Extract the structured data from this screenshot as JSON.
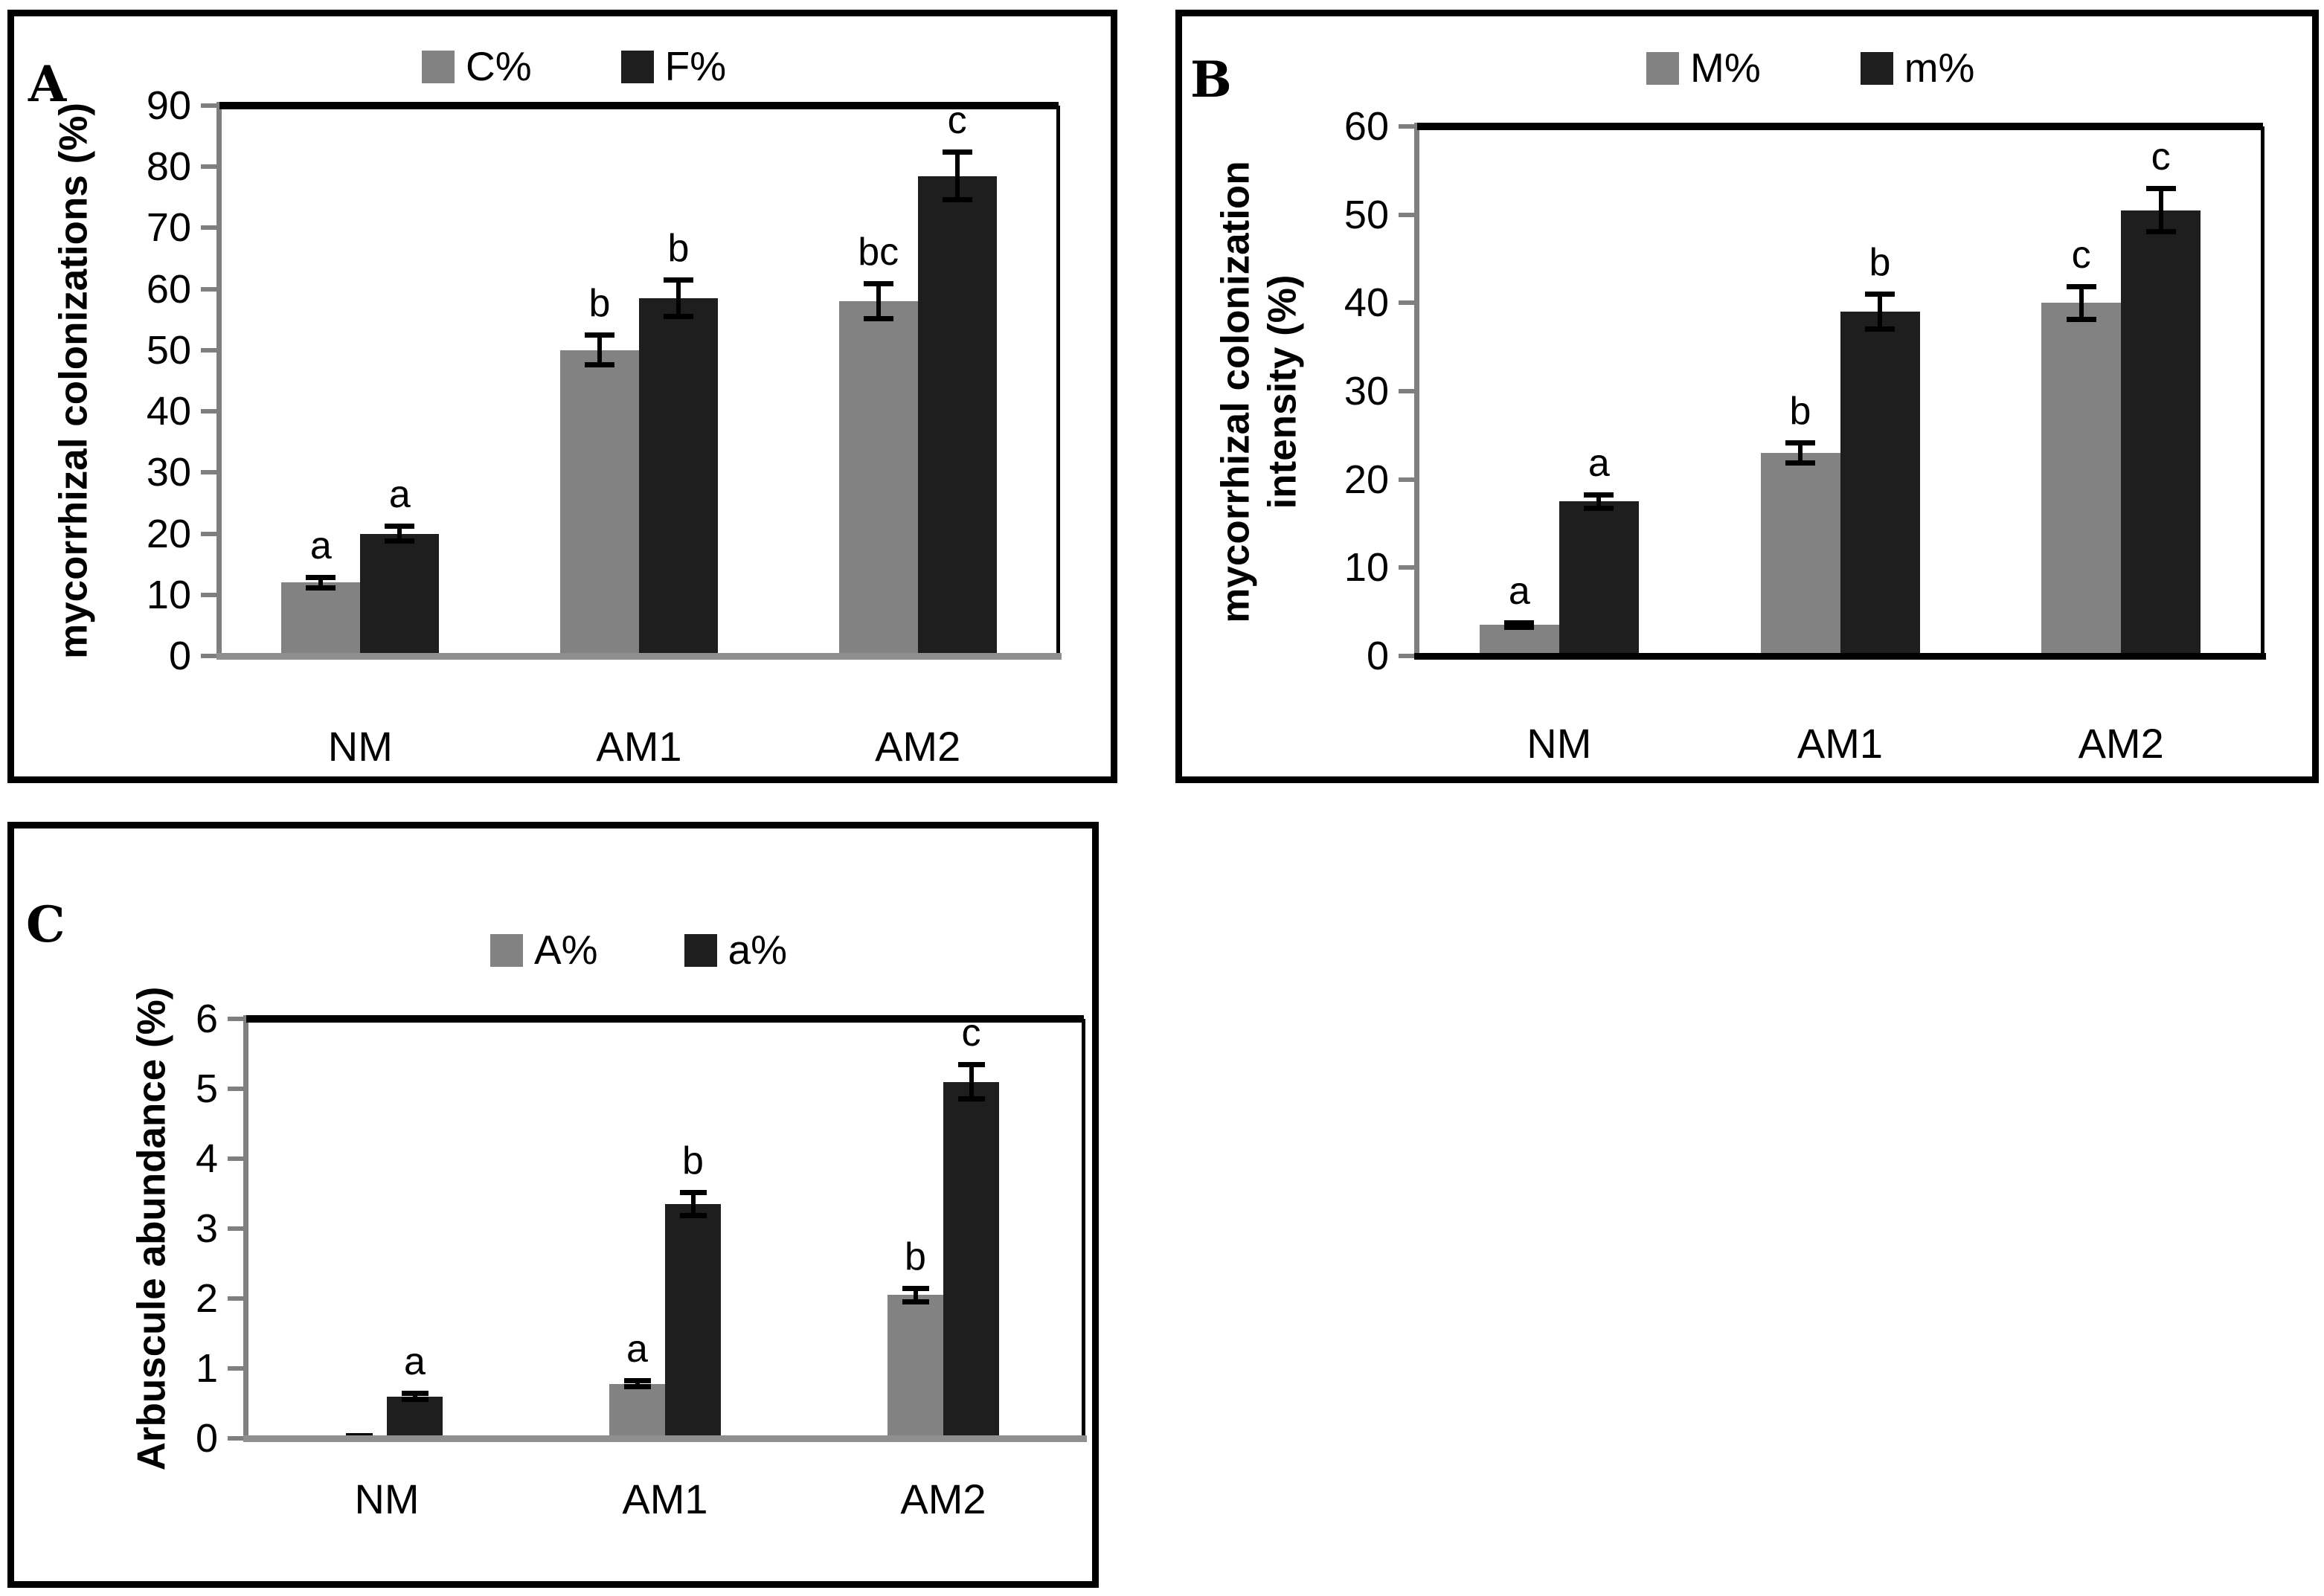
{
  "page": {
    "background": "#ffffff"
  },
  "colors": {
    "series_gray": "#828282",
    "series_dark": "#1e1e1e",
    "axis_gray": "#7f7f7f",
    "error_black": "#000000",
    "text": "#000000",
    "panel_border": "#000000"
  },
  "chart_data": [
    {
      "panel_label": "A",
      "type": "bar",
      "title": "",
      "ylabel_lines": [
        "mycorrhizal colonizations (%)"
      ],
      "xlabel": "",
      "categories": [
        "NM",
        "AM1",
        "AM2"
      ],
      "ylim": [
        0,
        90
      ],
      "ytick_step": 10,
      "grid": false,
      "legend_position": "top-center",
      "baseline_color": "#8f8f8f",
      "series": [
        {
          "name": "C%",
          "color": "#828282",
          "values": [
            12,
            50,
            58
          ],
          "errors": [
            0.9,
            2.5,
            2.9
          ],
          "sig_letters": [
            "a",
            "b",
            "bc"
          ]
        },
        {
          "name": "F%",
          "color": "#1e1e1e",
          "values": [
            20,
            58.5,
            78.5
          ],
          "errors": [
            1.3,
            3,
            4
          ],
          "sig_letters": [
            "a",
            "b",
            "c"
          ]
        }
      ]
    },
    {
      "panel_label": "B",
      "type": "bar",
      "title": "",
      "ylabel_lines": [
        "mycorrhizal colonization",
        "intensity (%)"
      ],
      "xlabel": "",
      "categories": [
        "NM",
        "AM1",
        "AM2"
      ],
      "ylim": [
        0,
        60
      ],
      "ytick_step": 10,
      "grid": false,
      "legend_position": "top-center",
      "baseline_color": "#000000",
      "series": [
        {
          "name": "M%",
          "color": "#828282",
          "values": [
            3.5,
            23,
            40
          ],
          "errors": [
            0.3,
            1.2,
            1.9
          ],
          "sig_letters": [
            "a",
            "b",
            "c"
          ]
        },
        {
          "name": "m%",
          "color": "#1e1e1e",
          "values": [
            17.5,
            39,
            50.5
          ],
          "errors": [
            0.8,
            2,
            2.5
          ],
          "sig_letters": [
            "a",
            "b",
            "c"
          ]
        }
      ]
    },
    {
      "panel_label": "C",
      "type": "bar",
      "title": "",
      "ylabel_lines": [
        "Arbuscule abundance (%)"
      ],
      "xlabel": "",
      "categories": [
        "NM",
        "AM1",
        "AM2"
      ],
      "ylim": [
        0,
        6
      ],
      "ytick_step": 1,
      "grid": false,
      "legend_position": "top-center",
      "baseline_color": "#8f8f8f",
      "series": [
        {
          "name": "A%",
          "color": "#828282",
          "values": [
            0.02,
            0.78,
            2.05
          ],
          "errors": [
            0.02,
            0.05,
            0.1
          ],
          "sig_letters": [
            "",
            "a",
            "b"
          ]
        },
        {
          "name": "a%",
          "color": "#1e1e1e",
          "values": [
            0.6,
            3.35,
            5.1
          ],
          "errors": [
            0.05,
            0.17,
            0.25
          ],
          "sig_letters": [
            "a",
            "b",
            "c"
          ]
        }
      ]
    }
  ]
}
